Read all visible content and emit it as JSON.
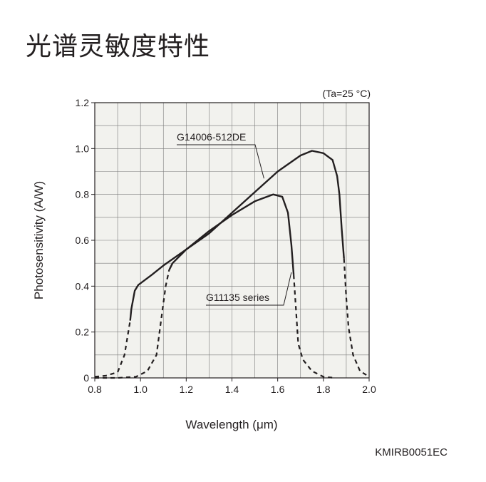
{
  "page": {
    "title": "光谱灵敏度特性",
    "figure_code": "KMIRB0051EC"
  },
  "chart_data": {
    "type": "line",
    "title": "",
    "condition": "(Ta=25 °C)",
    "xlabel": "Wavelength (μm)",
    "ylabel": "Photosensitivity (A/W)",
    "xlim": [
      0.8,
      2.0
    ],
    "ylim": [
      0,
      1.2
    ],
    "x_tick_labels": [
      "0.8",
      "1.0",
      "1.2",
      "1.4",
      "1.6",
      "1.8",
      "2.0"
    ],
    "y_tick_labels": [
      "0",
      "0.2",
      "0.4",
      "0.6",
      "0.8",
      "1.0",
      "1.2"
    ],
    "x_ticks": [
      0.8,
      1.0,
      1.2,
      1.4,
      1.6,
      1.8,
      2.0
    ],
    "y_ticks": [
      0,
      0.2,
      0.4,
      0.6,
      0.8,
      1.0,
      1.2
    ],
    "grid": true,
    "background_color": "#f2f2ee",
    "line_color": "#231f20",
    "series": [
      {
        "name": "G14006-512DE",
        "dashed": [
          [
            0.8,
            0.005
          ],
          [
            0.85,
            0.01
          ],
          [
            0.9,
            0.025
          ],
          [
            0.93,
            0.1
          ],
          [
            0.955,
            0.25
          ]
        ],
        "solid": [
          [
            0.955,
            0.25
          ],
          [
            0.96,
            0.3
          ],
          [
            0.975,
            0.38
          ],
          [
            0.99,
            0.405
          ],
          [
            1.05,
            0.45
          ],
          [
            1.1,
            0.49
          ],
          [
            1.2,
            0.56
          ],
          [
            1.3,
            0.63
          ],
          [
            1.4,
            0.72
          ],
          [
            1.5,
            0.81
          ],
          [
            1.6,
            0.9
          ],
          [
            1.7,
            0.97
          ],
          [
            1.75,
            0.99
          ],
          [
            1.8,
            0.98
          ],
          [
            1.84,
            0.95
          ],
          [
            1.86,
            0.88
          ],
          [
            1.87,
            0.8
          ],
          [
            1.88,
            0.65
          ],
          [
            1.89,
            0.52
          ]
        ],
        "dashed_tail": [
          [
            1.89,
            0.52
          ],
          [
            1.9,
            0.35
          ],
          [
            1.91,
            0.22
          ],
          [
            1.93,
            0.1
          ],
          [
            1.96,
            0.03
          ],
          [
            2.0,
            0.005
          ]
        ]
      },
      {
        "name": "G11135 series",
        "dashed": [
          [
            0.8,
            0.0
          ],
          [
            0.9,
            0.0
          ],
          [
            0.98,
            0.005
          ],
          [
            1.03,
            0.03
          ],
          [
            1.07,
            0.1
          ],
          [
            1.09,
            0.25
          ],
          [
            1.11,
            0.4
          ],
          [
            1.125,
            0.47
          ]
        ],
        "solid": [
          [
            1.125,
            0.47
          ],
          [
            1.14,
            0.5
          ],
          [
            1.2,
            0.56
          ],
          [
            1.3,
            0.64
          ],
          [
            1.4,
            0.71
          ],
          [
            1.5,
            0.77
          ],
          [
            1.58,
            0.8
          ],
          [
            1.62,
            0.79
          ],
          [
            1.645,
            0.72
          ],
          [
            1.66,
            0.58
          ],
          [
            1.67,
            0.45
          ]
        ],
        "dashed_tail": [
          [
            1.67,
            0.45
          ],
          [
            1.68,
            0.3
          ],
          [
            1.69,
            0.15
          ],
          [
            1.71,
            0.08
          ],
          [
            1.75,
            0.03
          ],
          [
            1.8,
            0.005
          ],
          [
            1.85,
            0.0
          ]
        ]
      }
    ],
    "annotations": [
      {
        "text": "G14006-512DE",
        "points_to": [
          1.54,
          0.87
        ]
      },
      {
        "text": "G11135 series",
        "points_to": [
          1.66,
          0.46
        ]
      }
    ]
  }
}
